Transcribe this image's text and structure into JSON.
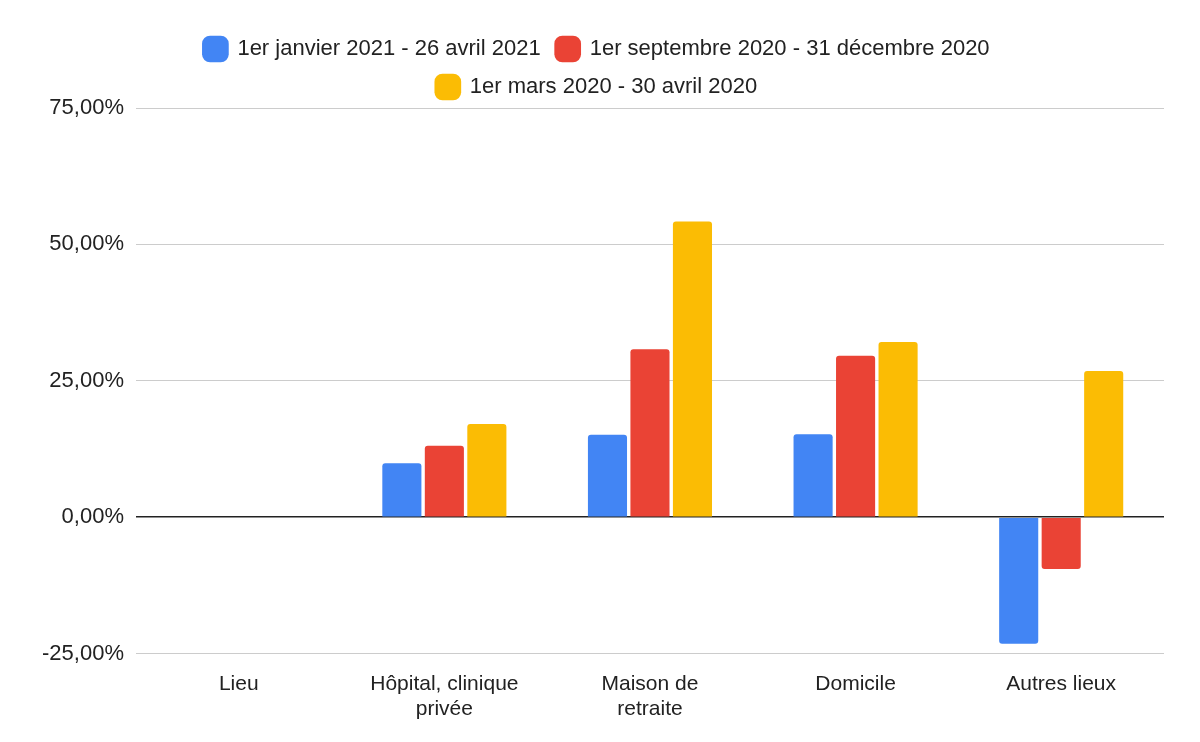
{
  "chart_data": {
    "type": "bar",
    "categories": [
      "Lieu",
      "Hôpital, clinique privée",
      "Maison de retraite",
      "Domicile",
      "Autres lieux"
    ],
    "series": [
      {
        "name": "1er janvier 2021 - 26 avril 2021",
        "color": "#4285f4",
        "values": [
          null,
          9.9,
          15.1,
          15.2,
          -23.2
        ]
      },
      {
        "name": "1er septembre 2020 - 31 décembre 2020",
        "color": "#ea4335",
        "values": [
          null,
          13.1,
          30.8,
          29.6,
          -9.5
        ]
      },
      {
        "name": "1er mars 2020 - 30 avril 2020",
        "color": "#fbbc04",
        "values": [
          null,
          17.1,
          54.2,
          32.1,
          26.8
        ]
      }
    ],
    "ylim": [
      -25,
      75
    ],
    "yticks": [
      {
        "value": -25,
        "label": "-25,00%"
      },
      {
        "value": 0,
        "label": "0,00%"
      },
      {
        "value": 25,
        "label": "25,00%"
      },
      {
        "value": 50,
        "label": "50,00%"
      },
      {
        "value": 75,
        "label": "75,00%"
      }
    ],
    "grid": true,
    "legend": "top"
  }
}
